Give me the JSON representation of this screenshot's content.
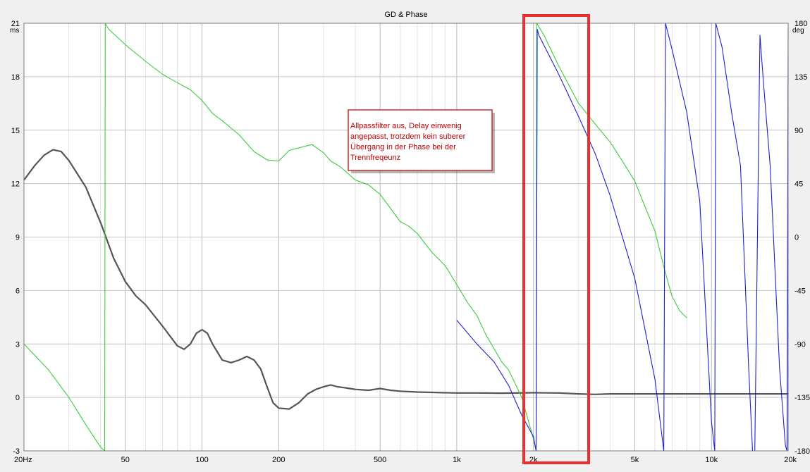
{
  "chart_data": {
    "type": "line",
    "title": "GD & Phase",
    "x_scale": "log",
    "xlim": [
      20,
      20000
    ],
    "x_ticks": [
      {
        "value": 20,
        "label": "20Hz"
      },
      {
        "value": 50,
        "label": "50"
      },
      {
        "value": 100,
        "label": "100"
      },
      {
        "value": 200,
        "label": "200"
      },
      {
        "value": 500,
        "label": "500"
      },
      {
        "value": 1000,
        "label": "1k"
      },
      {
        "value": 2000,
        "label": "2k"
      },
      {
        "value": 5000,
        "label": "5k"
      },
      {
        "value": 10000,
        "label": "10k"
      },
      {
        "value": 20000,
        "label": "20k"
      }
    ],
    "x_minor": [
      30,
      40,
      60,
      70,
      80,
      90,
      300,
      400,
      600,
      700,
      800,
      900,
      3000,
      4000,
      6000,
      7000,
      8000,
      9000
    ],
    "y_left": {
      "unit": "ms",
      "ylim": [
        -3,
        21
      ],
      "ticks": [
        -3,
        0,
        3,
        6,
        9,
        12,
        15,
        18,
        21
      ]
    },
    "y_right": {
      "unit": "deg",
      "ylim": [
        -180,
        180
      ],
      "ticks": [
        -180,
        -135,
        -90,
        -45,
        0,
        45,
        90,
        135,
        180
      ]
    },
    "grid": true,
    "series": [
      {
        "axis": "left",
        "color": "#555555",
        "width": 2.2,
        "points": [
          [
            20,
            12.2
          ],
          [
            22,
            13.0
          ],
          [
            24,
            13.6
          ],
          [
            26,
            13.9
          ],
          [
            28,
            13.8
          ],
          [
            30,
            13.3
          ],
          [
            35,
            11.8
          ],
          [
            40,
            9.8
          ],
          [
            45,
            7.8
          ],
          [
            50,
            6.5
          ],
          [
            55,
            5.7
          ],
          [
            60,
            5.2
          ],
          [
            70,
            4.0
          ],
          [
            80,
            2.9
          ],
          [
            85,
            2.7
          ],
          [
            90,
            3.0
          ],
          [
            95,
            3.6
          ],
          [
            100,
            3.8
          ],
          [
            105,
            3.6
          ],
          [
            110,
            3.0
          ],
          [
            120,
            2.1
          ],
          [
            130,
            1.95
          ],
          [
            140,
            2.1
          ],
          [
            150,
            2.3
          ],
          [
            160,
            2.1
          ],
          [
            170,
            1.6
          ],
          [
            180,
            0.6
          ],
          [
            190,
            -0.3
          ],
          [
            200,
            -0.6
          ],
          [
            220,
            -0.65
          ],
          [
            240,
            -0.3
          ],
          [
            260,
            0.2
          ],
          [
            280,
            0.45
          ],
          [
            300,
            0.6
          ],
          [
            320,
            0.7
          ],
          [
            340,
            0.6
          ],
          [
            360,
            0.55
          ],
          [
            380,
            0.5
          ],
          [
            400,
            0.45
          ],
          [
            450,
            0.4
          ],
          [
            500,
            0.5
          ],
          [
            550,
            0.4
          ],
          [
            600,
            0.35
          ],
          [
            700,
            0.3
          ],
          [
            800,
            0.28
          ],
          [
            900,
            0.26
          ],
          [
            1000,
            0.25
          ],
          [
            1200,
            0.25
          ],
          [
            1500,
            0.24
          ],
          [
            2000,
            0.26
          ],
          [
            2500,
            0.25
          ],
          [
            3000,
            0.2
          ],
          [
            3500,
            0.17
          ],
          [
            4000,
            0.2
          ],
          [
            5000,
            0.2
          ],
          [
            6000,
            0.2
          ],
          [
            8000,
            0.2
          ],
          [
            10000,
            0.2
          ],
          [
            15000,
            0.2
          ],
          [
            20000,
            0.2
          ]
        ]
      },
      {
        "axis": "right",
        "color": "#3ccc3c",
        "width": 1.1,
        "points": [
          [
            20,
            -90
          ],
          [
            25,
            -112
          ],
          [
            30,
            -135
          ],
          [
            35,
            -158
          ],
          [
            40,
            -177
          ],
          [
            41.5,
            -180
          ],
          [
            41.7,
            180
          ],
          [
            43,
            175
          ],
          [
            50,
            162
          ],
          [
            60,
            148
          ],
          [
            70,
            137
          ],
          [
            80,
            130
          ],
          [
            90,
            124
          ],
          [
            100,
            115
          ],
          [
            110,
            104
          ],
          [
            120,
            98
          ],
          [
            140,
            86
          ],
          [
            160,
            72
          ],
          [
            180,
            65
          ],
          [
            200,
            64
          ],
          [
            220,
            73
          ],
          [
            260,
            77
          ],
          [
            270,
            78
          ],
          [
            300,
            71
          ],
          [
            320,
            64
          ],
          [
            350,
            59
          ],
          [
            400,
            48
          ],
          [
            450,
            44
          ],
          [
            500,
            36
          ],
          [
            550,
            24
          ],
          [
            600,
            13
          ],
          [
            650,
            9
          ],
          [
            700,
            3
          ],
          [
            800,
            -13
          ],
          [
            900,
            -24
          ],
          [
            1000,
            -40
          ],
          [
            1100,
            -55
          ],
          [
            1200,
            -66
          ],
          [
            1300,
            -82
          ],
          [
            1500,
            -105
          ],
          [
            1600,
            -112
          ],
          [
            1800,
            -135
          ],
          [
            2000,
            -170
          ],
          [
            2050,
            -180
          ],
          [
            2060,
            180
          ],
          [
            2200,
            170
          ],
          [
            2500,
            145
          ],
          [
            3000,
            113
          ],
          [
            3500,
            95
          ],
          [
            4000,
            80
          ],
          [
            4500,
            63
          ],
          [
            5000,
            47
          ],
          [
            5500,
            25
          ],
          [
            6000,
            5
          ],
          [
            6500,
            -25
          ],
          [
            7000,
            -50
          ],
          [
            7500,
            -62
          ],
          [
            8000,
            -68
          ]
        ]
      },
      {
        "axis": "right",
        "color": "#1f1fd6",
        "width": 1.1,
        "points": [
          [
            1000,
            -70
          ],
          [
            1200,
            -90
          ],
          [
            1400,
            -105
          ],
          [
            1600,
            -125
          ],
          [
            1800,
            -150
          ],
          [
            2000,
            -168
          ],
          [
            2050,
            -180
          ],
          [
            2070,
            175
          ],
          [
            2100,
            170
          ],
          [
            2500,
            138
          ],
          [
            3000,
            102
          ],
          [
            3500,
            70
          ],
          [
            4000,
            35
          ],
          [
            5000,
            -35
          ],
          [
            6000,
            -120
          ],
          [
            6500,
            -180
          ],
          [
            6600,
            180
          ],
          [
            7000,
            158
          ],
          [
            8000,
            105
          ],
          [
            9000,
            30
          ],
          [
            10000,
            -155
          ],
          [
            10300,
            -180
          ],
          [
            10400,
            180
          ],
          [
            11000,
            160
          ],
          [
            12000,
            105
          ],
          [
            13000,
            60
          ],
          [
            14000,
            -110
          ],
          [
            14500,
            -180
          ],
          [
            14800,
            -180
          ],
          [
            15500,
            170
          ],
          [
            16000,
            130
          ],
          [
            17000,
            60
          ],
          [
            18500,
            -110
          ],
          [
            19500,
            -175
          ],
          [
            19800,
            -180
          ],
          [
            20000,
            175
          ]
        ]
      }
    ],
    "annotation": {
      "lines": [
        "Allpassfilter aus, Delay einwenig",
        "angepasst, trotzdem kein suberer",
        "Übergang in der Phase bei der",
        "Trennfreqeunz"
      ]
    }
  }
}
